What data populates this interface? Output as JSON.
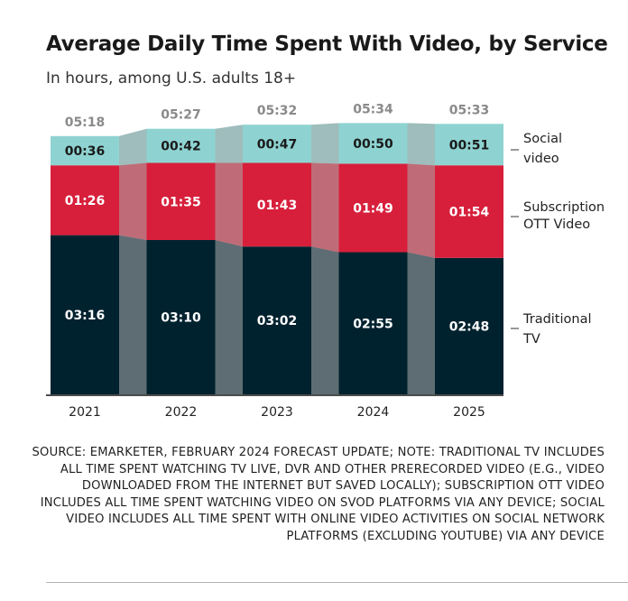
{
  "header": {
    "title": "Average Daily Time Spent With Video, by Service",
    "subtitle": "In hours, among U.S. adults 18+"
  },
  "chart_data": {
    "type": "bar",
    "stacked": true,
    "categories": [
      "2021",
      "2022",
      "2023",
      "2024",
      "2025"
    ],
    "series": [
      {
        "name": "Traditional TV",
        "values": [
          196,
          190,
          182,
          175,
          168
        ],
        "labels": [
          "03:16",
          "03:10",
          "03:02",
          "02:55",
          "02:48"
        ],
        "color": "#00222f",
        "label_color": "#ffffff"
      },
      {
        "name": "Subscription OTT Video",
        "values": [
          86,
          95,
          103,
          109,
          114
        ],
        "labels": [
          "01:26",
          "01:35",
          "01:43",
          "01:49",
          "01:54"
        ],
        "color": "#d71f3b",
        "label_color": "#ffffff"
      },
      {
        "name": "Social video",
        "values": [
          36,
          42,
          47,
          50,
          51
        ],
        "labels": [
          "00:36",
          "00:42",
          "00:47",
          "00:50",
          "00:51"
        ],
        "color": "#8ed3d1",
        "label_color": "#1a1a1a"
      }
    ],
    "totals": [
      318,
      327,
      332,
      334,
      333
    ],
    "total_labels": [
      "05:18",
      "05:27",
      "05:32",
      "05:34",
      "05:33"
    ],
    "legend_lines": [
      [
        "Social",
        "video"
      ],
      [
        "Subscription",
        "OTT Video"
      ],
      [
        "Traditional",
        "TV"
      ]
    ],
    "unit": "minutes (shown as hh:mm)",
    "ylim": [
      0,
      340
    ],
    "legend_placement": "right, aligned with segments",
    "grid": false
  },
  "footer": {
    "source": "SOURCE: EMARKETER, FEBRUARY 2024 FORECAST UPDATE; NOTE: TRADITIONAL TV INCLUDES ALL TIME SPENT WATCHING TV LIVE, DVR AND OTHER PRERECORDED VIDEO (E.G., VIDEO DOWNLOADED FROM THE INTERNET BUT SAVED LOCALLY); SUBSCRIPTION OTT VIDEO INCLUDES ALL TIME SPENT WATCHING VIDEO ON SVOD PLATFORMS VIA ANY DEVICE; SOCIAL VIDEO INCLUDES ALL TIME SPENT WITH ONLINE VIDEO ACTIVITIES ON SOCIAL NETWORK PLATFORMS (EXCLUDING YOUTUBE) VIA ANY DEVICE"
  }
}
